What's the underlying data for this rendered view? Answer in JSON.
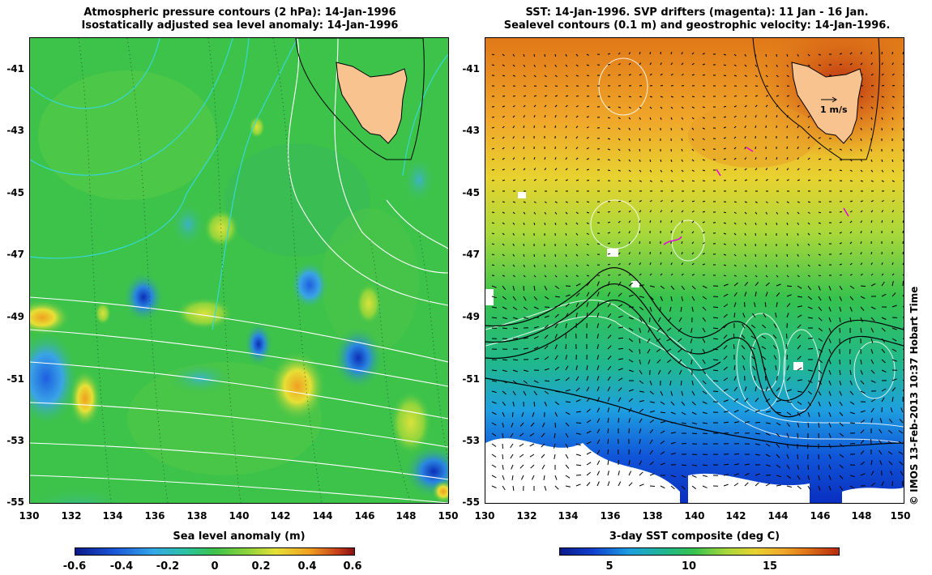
{
  "left_panel": {
    "title_line1": "Atmospheric pressure contours (2 hPa): 14-Jan-1996",
    "title_line2": "Isostatically adjusted sea level anomaly: 14-Jan-1996",
    "colorbar_title": "Sea level anomaly (m)",
    "colorbar_ticks": [
      "-0.6",
      "-0.4",
      "-0.2",
      "0",
      "0.2",
      "0.4",
      "0.6"
    ]
  },
  "right_panel": {
    "title_line1": "SST: 14-Jan-1996. SVP drifters (magenta): 11 Jan - 16 Jan.",
    "title_line2": "Sealevel contours (0.1 m) and geostrophic velocity: 14-Jan-1996.",
    "colorbar_title": "3-day SST composite (deg C)",
    "colorbar_ticks": [
      "5",
      "10",
      "15"
    ],
    "velocity_scale_label": "1 m/s"
  },
  "axes": {
    "lat_ticks": [
      "-41",
      "-43",
      "-45",
      "-47",
      "-49",
      "-51",
      "-53",
      "-55"
    ],
    "lon_ticks": [
      "130",
      "132",
      "134",
      "136",
      "138",
      "140",
      "142",
      "144",
      "146",
      "148",
      "150"
    ]
  },
  "credit": "© IMOS 13-Feb-2013 10:37 Hobart Time",
  "colors": {
    "land": "#f9c38f",
    "sla_bg": "#3dc34a",
    "pressure_contour": "#38d6d6",
    "sst_warm": "#e67a12",
    "sst_cold": "#0b3fd1",
    "drifters": "#e400e4"
  }
}
